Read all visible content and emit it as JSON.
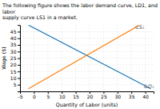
{
  "chart_data": {
    "type": "line",
    "title": "The following figure shows the labor demand curve, LD1, and labor\nsupply curve LS1 in a market.",
    "xlabel": "Quantity of Labor (units)",
    "ylabel": "Wage ($)",
    "xlim": [
      -5,
      43
    ],
    "ylim": [
      0,
      50
    ],
    "xticks": [
      -5,
      0,
      5,
      10,
      15,
      20,
      25,
      30,
      35,
      40
    ],
    "yticks": [
      5,
      10,
      15,
      20,
      25,
      30,
      35,
      40,
      45
    ],
    "grid": true,
    "series": [
      {
        "x": [
          -2,
          42
        ],
        "values": [
          50,
          2
        ]
      },
      {
        "x": [
          -2,
          38
        ],
        "values": [
          2,
          50
        ]
      }
    ],
    "annotations": [
      {
        "text": "iLD₁",
        "x": 39.5,
        "y": 3.5
      },
      {
        "text": "‹LS₁",
        "x": 36,
        "y": 48
      }
    ]
  }
}
